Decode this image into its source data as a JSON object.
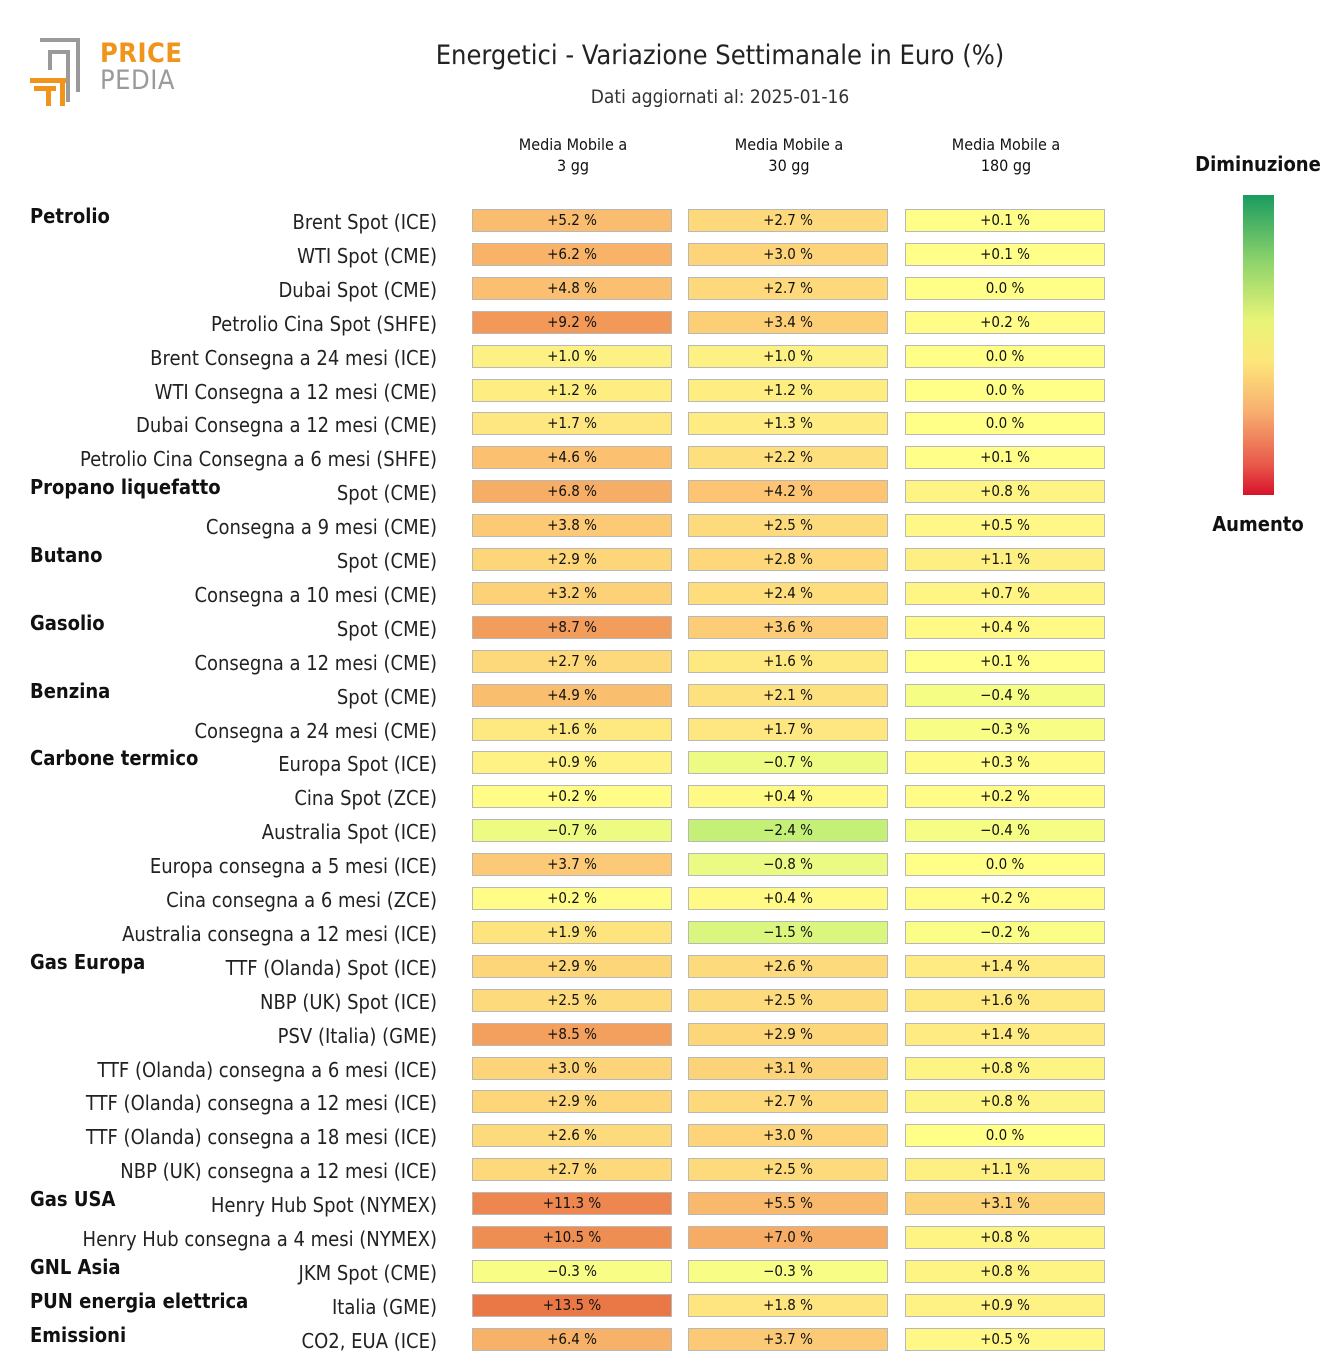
{
  "logo": {
    "line1": "PRICE",
    "line2": "PEDIA"
  },
  "header": {
    "title": "Energetici - Variazione Settimanale in Euro (%)",
    "subtitle": "Dati aggiornati al: 2025-01-16"
  },
  "legend": {
    "top_label": "Diminuzione",
    "bottom_label": "Aumento"
  },
  "chart_data": {
    "type": "heatmap",
    "title": "Energetici - Variazione Settimanale in Euro (%)",
    "subtitle": "Dati aggiornati al: 2025-01-16",
    "columns": [
      "Media Mobile a\n3 gg",
      "Media Mobile a\n30 gg",
      "Media Mobile a\n180 gg"
    ],
    "colorscale": {
      "top": "Diminuzione",
      "bottom": "Aumento"
    },
    "groups": [
      {
        "name": "Petrolio",
        "rows": [
          {
            "label": "Brent Spot (ICE)",
            "values": [
              5.2,
              2.7,
              0.1
            ]
          },
          {
            "label": "WTI Spot (CME)",
            "values": [
              6.2,
              3.0,
              0.1
            ]
          },
          {
            "label": "Dubai Spot (CME)",
            "values": [
              4.8,
              2.7,
              0.0
            ]
          },
          {
            "label": "Petrolio Cina Spot (SHFE)",
            "values": [
              9.2,
              3.4,
              0.2
            ]
          },
          {
            "label": "Brent Consegna a 24 mesi (ICE)",
            "values": [
              1.0,
              1.0,
              0.0
            ]
          },
          {
            "label": "WTI Consegna a 12 mesi (CME)",
            "values": [
              1.2,
              1.2,
              0.0
            ]
          },
          {
            "label": "Dubai Consegna a 12 mesi (CME)",
            "values": [
              1.7,
              1.3,
              0.0
            ]
          },
          {
            "label": "Petrolio Cina Consegna a 6 mesi (SHFE)",
            "values": [
              4.6,
              2.2,
              0.1
            ]
          }
        ]
      },
      {
        "name": "Propano liquefatto",
        "rows": [
          {
            "label": "Spot (CME)",
            "values": [
              6.8,
              4.2,
              0.8
            ]
          },
          {
            "label": "Consegna a 9 mesi (CME)",
            "values": [
              3.8,
              2.5,
              0.5
            ]
          }
        ]
      },
      {
        "name": "Butano",
        "rows": [
          {
            "label": "Spot (CME)",
            "values": [
              2.9,
              2.8,
              1.1
            ]
          },
          {
            "label": "Consegna a 10 mesi (CME)",
            "values": [
              3.2,
              2.4,
              0.7
            ]
          }
        ]
      },
      {
        "name": "Gasolio",
        "rows": [
          {
            "label": "Spot (CME)",
            "values": [
              8.7,
              3.6,
              0.4
            ]
          },
          {
            "label": "Consegna a 12 mesi (CME)",
            "values": [
              2.7,
              1.6,
              0.1
            ]
          }
        ]
      },
      {
        "name": "Benzina",
        "rows": [
          {
            "label": "Spot (CME)",
            "values": [
              4.9,
              2.1,
              -0.4
            ]
          },
          {
            "label": "Consegna a 24 mesi (CME)",
            "values": [
              1.6,
              1.7,
              -0.3
            ]
          }
        ]
      },
      {
        "name": "Carbone termico",
        "rows": [
          {
            "label": "Europa Spot (ICE)",
            "values": [
              0.9,
              -0.7,
              0.3
            ]
          },
          {
            "label": "Cina Spot (ZCE)",
            "values": [
              0.2,
              0.4,
              0.2
            ]
          },
          {
            "label": "Australia Spot (ICE)",
            "values": [
              -0.7,
              -2.4,
              -0.4
            ]
          },
          {
            "label": "Europa consegna a 5 mesi (ICE)",
            "values": [
              3.7,
              -0.8,
              0.0
            ]
          },
          {
            "label": "Cina consegna a 6 mesi (ZCE)",
            "values": [
              0.2,
              0.4,
              0.2
            ]
          },
          {
            "label": "Australia consegna a 12 mesi (ICE)",
            "values": [
              1.9,
              -1.5,
              -0.2
            ]
          }
        ]
      },
      {
        "name": "Gas Europa",
        "rows": [
          {
            "label": "TTF (Olanda) Spot (ICE)",
            "values": [
              2.9,
              2.6,
              1.4
            ]
          },
          {
            "label": "NBP (UK) Spot (ICE)",
            "values": [
              2.5,
              2.5,
              1.6
            ]
          },
          {
            "label": "PSV (Italia) (GME)",
            "values": [
              8.5,
              2.9,
              1.4
            ]
          },
          {
            "label": "TTF (Olanda) consegna a 6 mesi (ICE)",
            "values": [
              3.0,
              3.1,
              0.8
            ]
          },
          {
            "label": "TTF (Olanda) consegna a 12 mesi (ICE)",
            "values": [
              2.9,
              2.7,
              0.8
            ]
          },
          {
            "label": "TTF (Olanda) consegna a 18 mesi (ICE)",
            "values": [
              2.6,
              3.0,
              0.0
            ]
          },
          {
            "label": "NBP (UK) consegna a 12 mesi (ICE)",
            "values": [
              2.7,
              2.5,
              1.1
            ]
          }
        ]
      },
      {
        "name": "Gas USA",
        "rows": [
          {
            "label": "Henry Hub Spot (NYMEX)",
            "values": [
              11.3,
              5.5,
              3.1
            ]
          },
          {
            "label": "Henry Hub consegna a 4 mesi (NYMEX)",
            "values": [
              10.5,
              7.0,
              0.8
            ]
          }
        ]
      },
      {
        "name": "GNL Asia",
        "rows": [
          {
            "label": "JKM Spot (CME)",
            "values": [
              -0.3,
              -0.3,
              0.8
            ]
          }
        ]
      },
      {
        "name": "PUN energia elettrica",
        "rows": [
          {
            "label": "Italia (GME)",
            "values": [
              13.5,
              1.8,
              0.9
            ]
          }
        ]
      },
      {
        "name": "Emissioni",
        "rows": [
          {
            "label": "CO2, EUA (ICE)",
            "values": [
              6.4,
              3.7,
              0.5
            ]
          }
        ]
      }
    ]
  }
}
